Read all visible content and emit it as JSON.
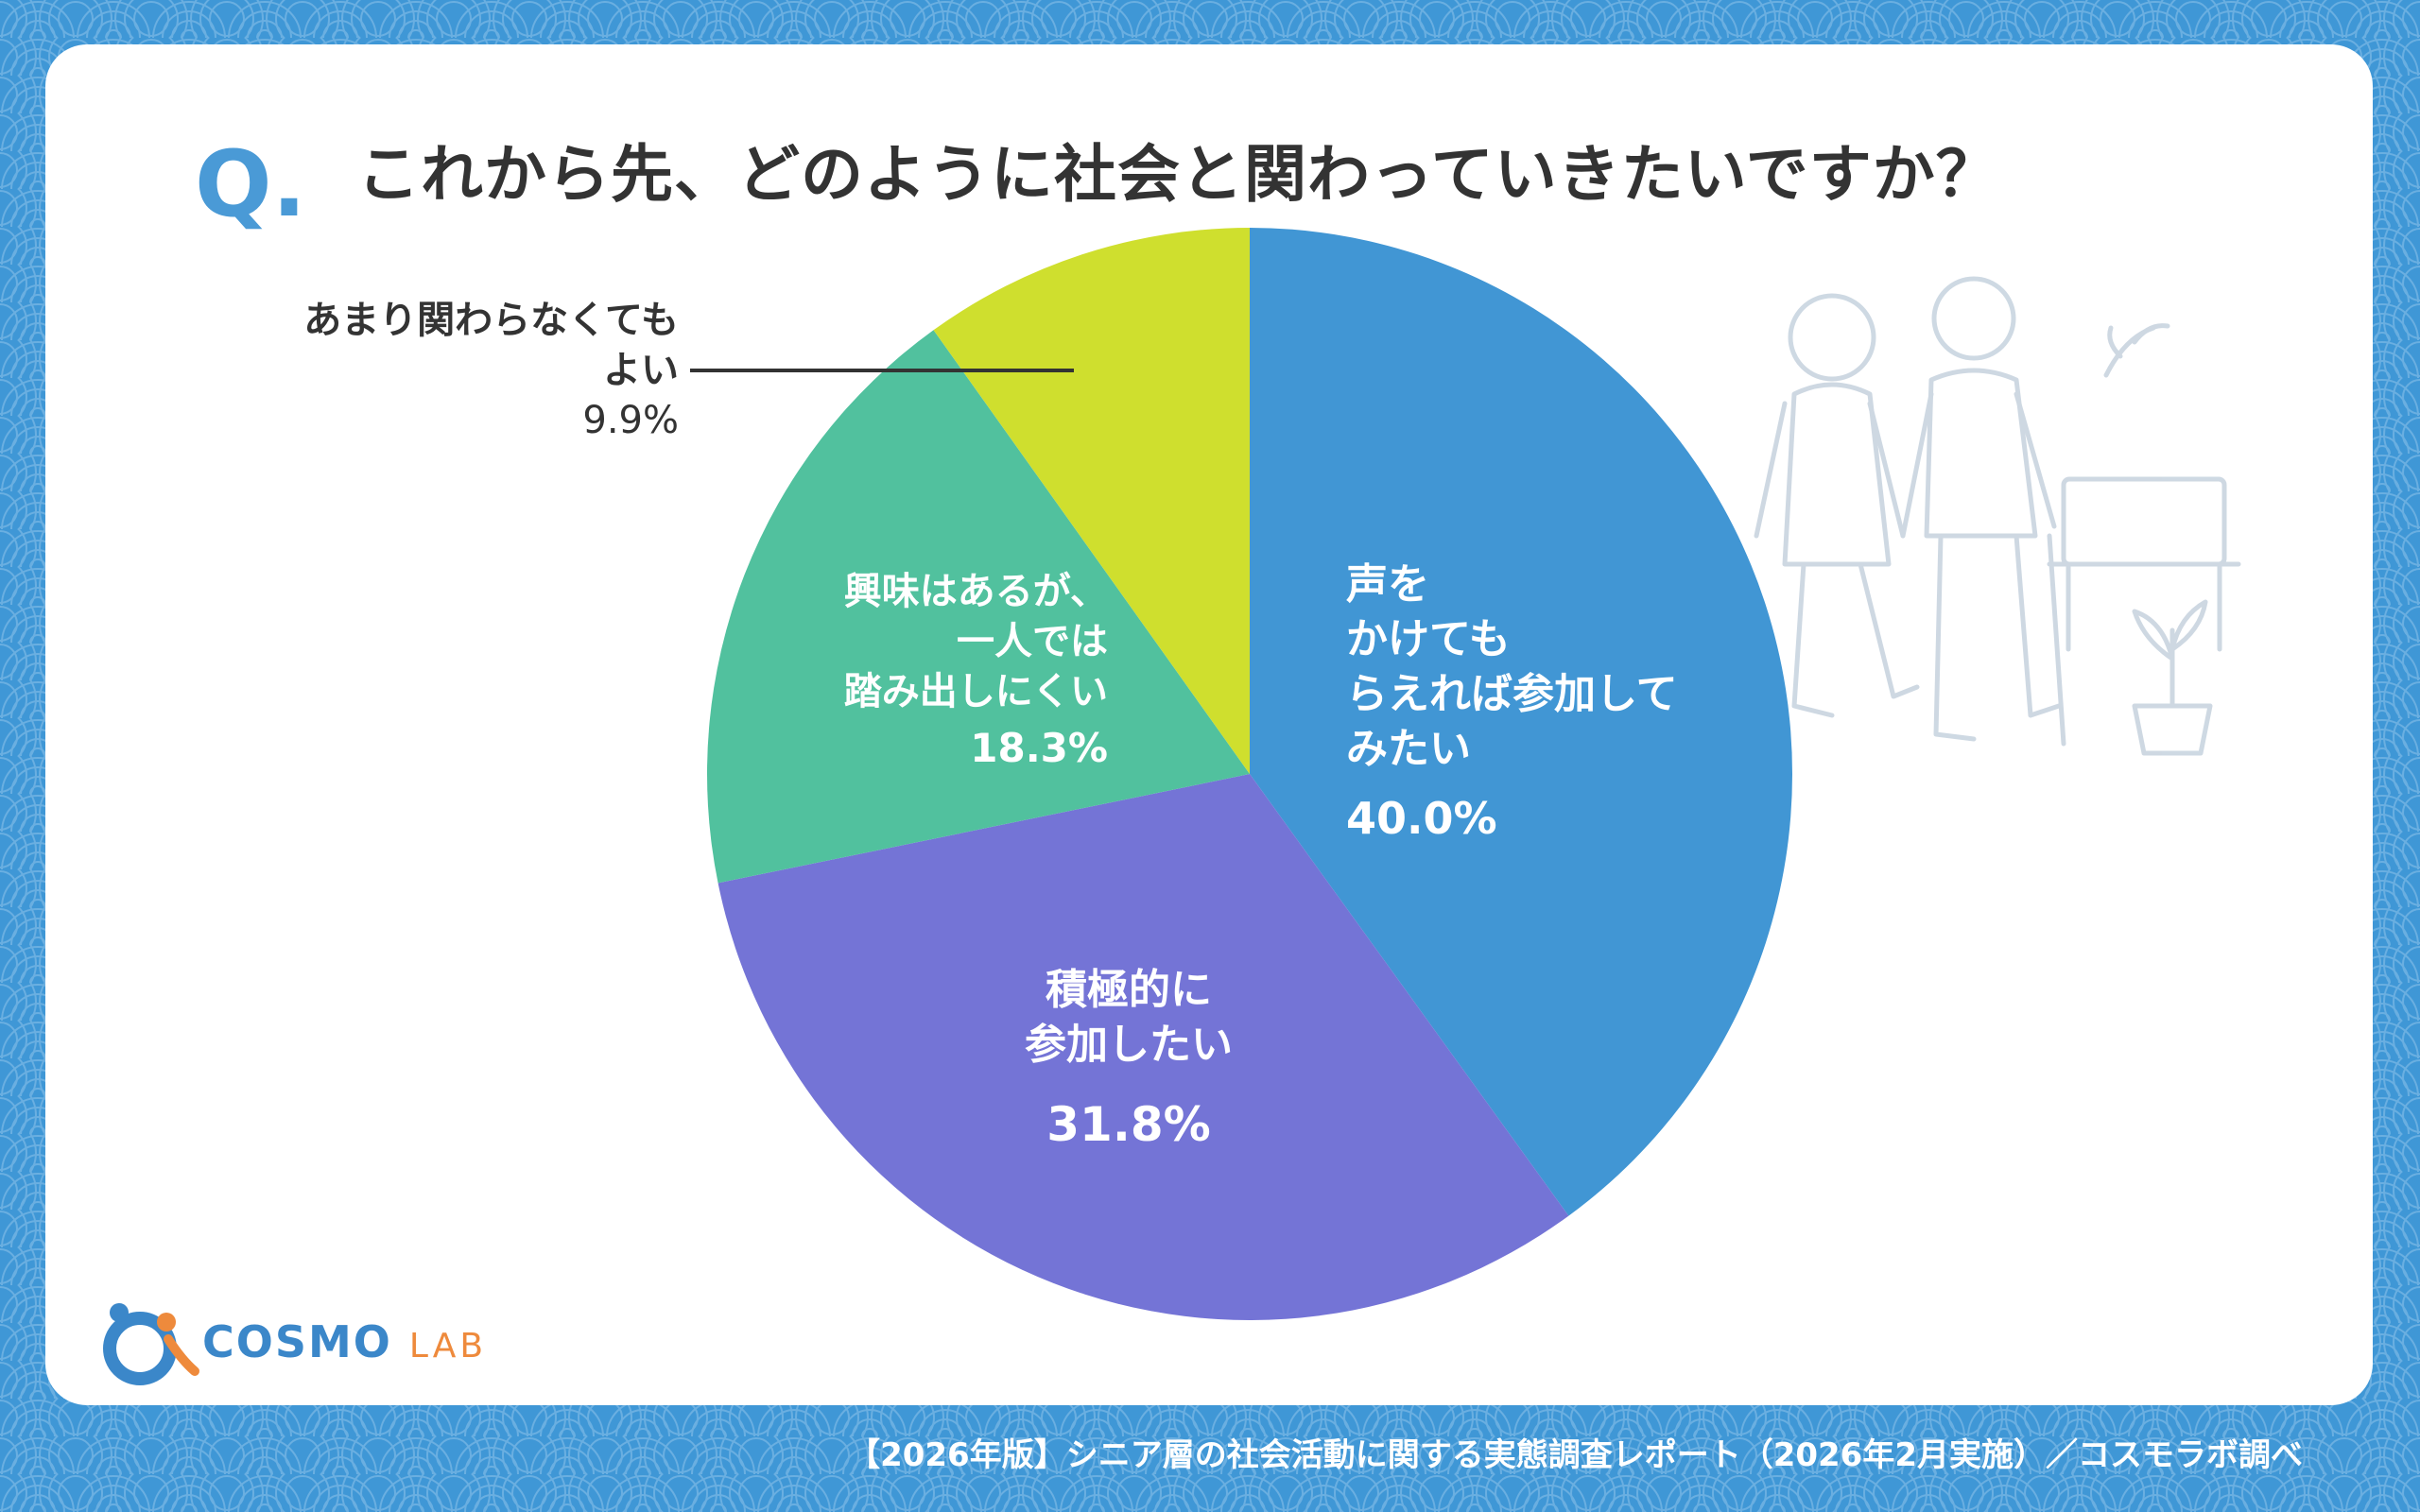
{
  "question": {
    "mark": "Q.",
    "text": "これから先、どのように社会と関わっていきたいですか？"
  },
  "chart_data": {
    "type": "pie",
    "slices": [
      {
        "label_lines": [
          "声を",
          "かけても",
          "らえれば参加して",
          "みたい"
        ],
        "value": 40.0,
        "value_text": "40.0%",
        "color": "#4196d4"
      },
      {
        "label_lines": [
          "積極的に",
          "参加したい"
        ],
        "value": 31.8,
        "value_text": "31.8%",
        "color": "#7474d6"
      },
      {
        "label_lines": [
          "興味はあるが、",
          "一人では",
          "踏み出しにくい"
        ],
        "value": 18.3,
        "value_text": "18.3%",
        "color": "#51c19e"
      },
      {
        "label_lines": [
          "あまり関わらなくても",
          "よい"
        ],
        "value": 9.9,
        "value_text": "9.9%",
        "color": "#cfdf2e"
      }
    ]
  },
  "logo": {
    "main": "COSMO",
    "sub": "LAB",
    "icon": "cosmo-lab-logo-icon"
  },
  "footer": "【2026年版】シニア層の社会活動に関する実態調査レポート（2026年2月実施）／コスモラボ調べ",
  "colors": {
    "background": "#3f97d6",
    "card": "#ffffff",
    "accent": "#4a9ad6",
    "text": "#333333"
  }
}
